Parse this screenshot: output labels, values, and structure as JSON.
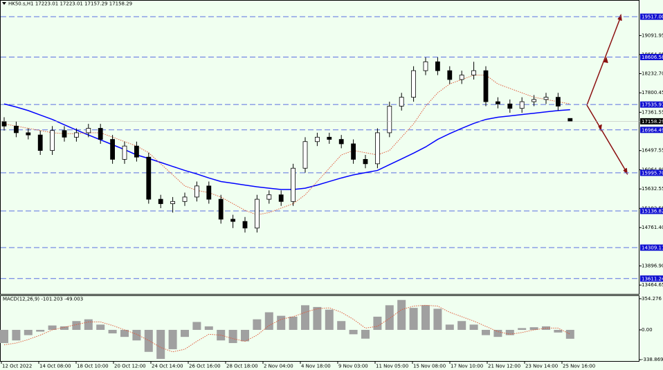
{
  "chart_data": {
    "type": "candlestick",
    "symbol": "HK50.s,H1",
    "color_up": "#ffffff",
    "color_down": "#000000",
    "ylim": [
      13265,
      19878
    ],
    "yticks": [
      19091.95,
      18664.95,
      {
        "value": 18232.7,
        "label": "18232.70"
      },
      17800.45,
      17361.55,
      16497.55,
      {
        "value": 16064.8,
        "label": "16064.80"
      },
      15632.55,
      15193.55,
      {
        "value": 14761.4,
        "label": "14761.40"
      },
      {
        "value": 13896.9,
        "label": "13896.90"
      },
      13464.65
    ],
    "levels": [
      {
        "value": 19517,
        "label": "19517.00"
      },
      18606.58,
      17535.97,
      16964.49,
      {
        "value": 15995.7,
        "label": "15995.70"
      },
      15136.82,
      14309.11,
      13611.24
    ],
    "level_color": "#5a6fe0",
    "x_labels": [
      "12 Oct 2022",
      "14 Oct 08:00",
      "18 Oct 10:00",
      "20 Oct 12:00",
      "24 Oct 14:00",
      "26 Oct 16:00",
      "28 Oct 18:00",
      "2 Nov 04:00",
      "4 Nov 18:00",
      "9 Nov 03:00",
      "11 Nov 05:00",
      "15 Nov 08:00",
      "17 Nov 10:00",
      "21 Nov 12:00",
      "23 Nov 14:00",
      "25 Nov 16:00"
    ],
    "candles": [
      [
        17150,
        17250,
        16950,
        17050
      ],
      [
        17050,
        17150,
        16800,
        16900
      ],
      [
        16900,
        17000,
        16750,
        16850
      ],
      [
        16850,
        16950,
        16400,
        16500
      ],
      [
        16500,
        17050,
        16400,
        16950
      ],
      [
        16950,
        17050,
        16700,
        16800
      ],
      [
        16800,
        17000,
        16700,
        16900
      ],
      [
        16900,
        17100,
        16800,
        17000
      ],
      [
        17000,
        17100,
        16650,
        16750
      ],
      [
        16750,
        16850,
        16200,
        16300
      ],
      [
        16300,
        16700,
        16200,
        16600
      ],
      [
        16600,
        16700,
        16250,
        16350
      ],
      [
        16350,
        16450,
        15300,
        15400
      ],
      [
        15400,
        15500,
        15200,
        15300
      ],
      [
        15300,
        15450,
        15100,
        15350
      ],
      [
        15350,
        15550,
        15250,
        15450
      ],
      [
        15450,
        15800,
        15350,
        15700
      ],
      [
        15700,
        15800,
        15300,
        15400
      ],
      [
        15400,
        15500,
        14850,
        14950
      ],
      [
        14950,
        15050,
        14750,
        14900
      ],
      [
        14900,
        15000,
        14650,
        14750
      ],
      [
        14750,
        15500,
        14650,
        15400
      ],
      [
        15400,
        15600,
        15300,
        15500
      ],
      [
        15500,
        15600,
        15250,
        15350
      ],
      [
        15350,
        16200,
        15250,
        16100
      ],
      [
        16100,
        16800,
        16000,
        16700
      ],
      [
        16700,
        16900,
        16600,
        16800
      ],
      [
        16800,
        16900,
        16650,
        16750
      ],
      [
        16750,
        16850,
        16550,
        16650
      ],
      [
        16650,
        16750,
        16200,
        16300
      ],
      [
        16300,
        16400,
        16100,
        16200
      ],
      [
        16200,
        17000,
        16100,
        16900
      ],
      [
        16900,
        17600,
        16800,
        17500
      ],
      [
        17500,
        17800,
        17400,
        17700
      ],
      [
        17700,
        18400,
        17600,
        18300
      ],
      [
        18300,
        18600,
        18200,
        18500
      ],
      [
        18500,
        18600,
        18200,
        18300
      ],
      [
        18300,
        18400,
        18000,
        18100
      ],
      [
        18100,
        18300,
        18000,
        18200
      ],
      [
        18200,
        18500,
        18100,
        18300
      ],
      [
        18300,
        18400,
        17500,
        17600
      ],
      [
        17600,
        17700,
        17450,
        17550
      ],
      [
        17550,
        17650,
        17350,
        17450
      ],
      [
        17450,
        17700,
        17350,
        17600
      ],
      [
        17600,
        17750,
        17500,
        17650
      ],
      [
        17650,
        17800,
        17550,
        17700
      ],
      [
        17700,
        17800,
        17400,
        17500
      ],
      [
        17223.01,
        17223.01,
        17157.29,
        17158.29
      ]
    ],
    "series": [
      {
        "color": "#0000ff",
        "values": [
          17550,
          17480,
          17400,
          17300,
          17200,
          17080,
          16960,
          16850,
          16740,
          16630,
          16520,
          16400,
          16320,
          16230,
          16140,
          16050,
          15970,
          15880,
          15800,
          15760,
          15720,
          15680,
          15650,
          15620,
          15620,
          15650,
          15720,
          15800,
          15880,
          15950,
          16000,
          16050,
          16180,
          16310,
          16440,
          16580,
          16750,
          16880,
          17000,
          17110,
          17200,
          17250,
          17280,
          17310,
          17340,
          17370,
          17400,
          17420
        ]
      },
      {
        "color": "#e05a3a",
        "values": [
          17100,
          17050,
          17000,
          16950,
          16900,
          16880,
          16880,
          16900,
          16900,
          16800,
          16700,
          16600,
          16450,
          16200,
          15950,
          15700,
          15600,
          15550,
          15450,
          15300,
          15150,
          15050,
          15100,
          15200,
          15300,
          15500,
          15800,
          16100,
          16400,
          16500,
          16450,
          16400,
          16500,
          16800,
          17100,
          17500,
          17800,
          18000,
          18100,
          18200,
          18200,
          18000,
          17900,
          17800,
          17700,
          17650,
          17600,
          17550
        ]
      }
    ],
    "macd": {
      "name": "MACD(12,26,9)",
      "ylim": [
        -354,
        385
      ],
      "yticks": [
        354.276,
        {
          "value": 0,
          "label": "0.00"
        },
        -338.869
      ],
      "color": "#a0a0a0",
      "signal_color": "#e05a3a",
      "values": [
        -150,
        -120,
        -60,
        -20,
        50,
        40,
        100,
        120,
        60,
        -40,
        -80,
        -120,
        -250,
        -330,
        -220,
        -80,
        90,
        40,
        -120,
        -150,
        -130,
        120,
        200,
        160,
        150,
        280,
        260,
        230,
        100,
        -50,
        -100,
        150,
        280,
        340,
        250,
        280,
        240,
        60,
        100,
        60,
        -60,
        -80,
        -60,
        20,
        30,
        40,
        -30,
        -101.203
      ],
      "signal": [
        -170,
        -150,
        -110,
        -60,
        0,
        30,
        60,
        90,
        90,
        50,
        0,
        -50,
        -120,
        -200,
        -250,
        -220,
        -130,
        -50,
        -60,
        -100,
        -130,
        -60,
        50,
        120,
        150,
        200,
        240,
        250,
        200,
        120,
        20,
        40,
        130,
        230,
        270,
        280,
        270,
        200,
        150,
        100,
        40,
        -20,
        -50,
        -30,
        0,
        20,
        20,
        -49.003
      ]
    }
  }
}
